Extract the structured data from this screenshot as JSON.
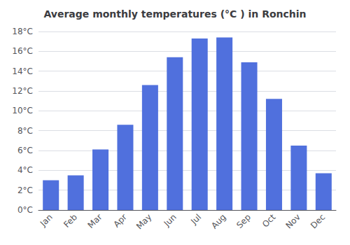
{
  "chart_data": {
    "type": "bar",
    "title": "Average monthly temperatures (°C ) in Ronchin",
    "categories": [
      "Jan",
      "Feb",
      "Mar",
      "Apr",
      "May",
      "Jun",
      "Jul",
      "Aug",
      "Sep",
      "Oct",
      "Nov",
      "Dec"
    ],
    "values": [
      3.0,
      3.5,
      6.1,
      8.6,
      12.6,
      15.4,
      17.3,
      17.4,
      14.9,
      11.2,
      6.5,
      3.7
    ],
    "ylim": [
      0,
      18
    ],
    "yticks": [
      {
        "value": 0,
        "label": "0°C"
      },
      {
        "value": 2,
        "label": "2°C"
      },
      {
        "value": 4,
        "label": "4°C"
      },
      {
        "value": 6,
        "label": "6°C"
      },
      {
        "value": 8,
        "label": "8°C"
      },
      {
        "value": 10,
        "label": "10°C"
      },
      {
        "value": 12,
        "label": "12°C"
      },
      {
        "value": 14,
        "label": "14°C"
      },
      {
        "value": 16,
        "label": "16°C"
      },
      {
        "value": 18,
        "label": "18°C"
      }
    ],
    "grid": true
  }
}
